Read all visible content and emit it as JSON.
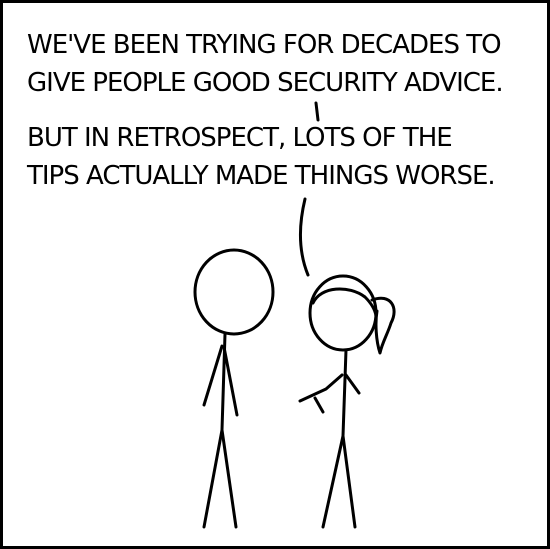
{
  "comic": {
    "lines": [
      "WE'VE BEEN TRYING FOR DECADES TO",
      "GIVE PEOPLE GOOD SECURITY ADVICE.",
      "BUT IN RETROSPECT, LOTS OF THE",
      "TIPS ACTUALLY MADE THINGS WORSE."
    ],
    "colors": {
      "ink": "#000000",
      "paper": "#ffffff"
    }
  }
}
